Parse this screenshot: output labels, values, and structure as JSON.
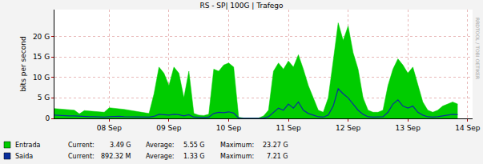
{
  "chart_data": {
    "type": "area",
    "title": "RS - SP| 100G | Trafego",
    "y_label": "bits per second",
    "watermark": "RRDTOOL / TOBI OETIKER",
    "categories": [
      null,
      null,
      null,
      null,
      null,
      null,
      null,
      null,
      null,
      null,
      null,
      "08 Sep",
      null,
      null,
      null,
      null,
      null,
      null,
      null,
      null,
      null,
      null,
      null,
      "09 Sep",
      null,
      null,
      null,
      null,
      null,
      null,
      null,
      null,
      null,
      null,
      null,
      "10 Sep",
      null,
      null,
      null,
      null,
      null,
      null,
      null,
      null,
      null,
      null,
      null,
      "11 Sep",
      null,
      null,
      null,
      null,
      null,
      null,
      null,
      null,
      null,
      null,
      null,
      "12 Sep",
      null,
      null,
      null,
      null,
      null,
      null,
      null,
      null,
      null,
      null,
      null,
      "13 Sep",
      null,
      null,
      null,
      null,
      null,
      null,
      null,
      null,
      null,
      null,
      null,
      "14 Sep",
      null
    ],
    "series": [
      {
        "name": "Entrada",
        "color": "#00cc00",
        "type": "area",
        "values": [
          2400000000.0,
          2300000000.0,
          2200000000.0,
          2100000000.0,
          2000000000.0,
          1100000000.0,
          1900000000.0,
          1800000000.0,
          1700000000.0,
          1600000000.0,
          1500000000.0,
          2600000000.0,
          2500000000.0,
          2300000000.0,
          2200000000.0,
          2000000000.0,
          1800000000.0,
          1600000000.0,
          1400000000.0,
          1200000000.0,
          6000000000.0,
          12500000000.0,
          11000000000.0,
          8000000000.0,
          12500000000.0,
          11000000000.0,
          5000000000.0,
          11500000000.0,
          1200000000.0,
          800000000.0,
          700000000.0,
          1000000000.0,
          12000000000.0,
          11500000000.0,
          13000000000.0,
          13500000000.0,
          12500000000.0,
          300000000.0,
          100000000.0,
          100000000.0,
          100000000.0,
          100000000.0,
          600000000.0,
          2000000000.0,
          11500000000.0,
          13500000000.0,
          12000000000.0,
          14000000000.0,
          12500000000.0,
          15500000000.0,
          12000000000.0,
          8000000000.0,
          5000000000.0,
          2000000000.0,
          1500000000.0,
          5000000000.0,
          14000000000.0,
          23270000000.0,
          19000000000.0,
          22500000000.0,
          16000000000.0,
          12000000000.0,
          5000000000.0,
          2000000000.0,
          1500000000.0,
          1500000000.0,
          2000000000.0,
          8000000000.0,
          12000000000.0,
          14500000000.0,
          13000000000.0,
          11000000000.0,
          12500000000.0,
          8000000000.0,
          4000000000.0,
          2000000000.0,
          1500000000.0,
          2000000000.0,
          3000000000.0,
          3500000000.0,
          4000000000.0,
          3490000000.0,
          null,
          null,
          null
        ],
        "stats": [
          {
            "name": "Current:",
            "value": 3490000000.0,
            "label": "3.49 G"
          },
          {
            "name": "Average:",
            "value": 5550000000.0,
            "label": "5.55 G"
          },
          {
            "name": "Maximum:",
            "value": 23270000000.0,
            "label": "23.27 G"
          }
        ]
      },
      {
        "name": "Saida",
        "color": "#0a2f9c",
        "type": "line",
        "values": [
          800000000.0,
          700000000.0,
          700000000.0,
          600000000.0,
          600000000.0,
          500000000.0,
          500000000.0,
          400000000.0,
          400000000.0,
          300000000.0,
          300000000.0,
          400000000.0,
          500000000.0,
          500000000.0,
          400000000.0,
          400000000.0,
          300000000.0,
          300000000.0,
          300000000.0,
          300000000.0,
          500000000.0,
          1000000000.0,
          900000000.0,
          800000000.0,
          1000000000.0,
          900000000.0,
          600000000.0,
          900000000.0,
          300000000.0,
          200000000.0,
          200000000.0,
          300000000.0,
          1200000000.0,
          1500000000.0,
          1400000000.0,
          1600000000.0,
          1300000000.0,
          100000000.0,
          50000000.0,
          50000000.0,
          50000000.0,
          50000000.0,
          100000000.0,
          400000000.0,
          1500000000.0,
          2500000000.0,
          2000000000.0,
          3500000000.0,
          2500000000.0,
          4000000000.0,
          2000000000.0,
          1200000000.0,
          800000000.0,
          400000000.0,
          300000000.0,
          800000000.0,
          3000000000.0,
          7210000000.0,
          6000000000.0,
          5000000000.0,
          3500000000.0,
          2000000000.0,
          1000000000.0,
          400000000.0,
          300000000.0,
          300000000.0,
          400000000.0,
          1500000000.0,
          3500000000.0,
          4500000000.0,
          3000000000.0,
          2500000000.0,
          3000000000.0,
          1500000000.0,
          800000000.0,
          400000000.0,
          300000000.0,
          400000000.0,
          600000000.0,
          800000000.0,
          1000000000.0,
          892320000.0,
          null,
          null,
          null
        ],
        "stats": [
          {
            "name": "Current:",
            "value": 892320000.0,
            "label": "892.32 M"
          },
          {
            "name": "Average:",
            "value": 1330000000.0,
            "label": "1.33 G"
          },
          {
            "name": "Maximum:",
            "value": 7210000000.0,
            "label": "7.21 G"
          }
        ]
      }
    ],
    "ylim": [
      0,
      26500000000.0
    ],
    "yticks": [
      0,
      {
        "value": 5000000000.0,
        "label": "5 G"
      },
      {
        "value": 10000000000.0,
        "label": "10 G"
      },
      {
        "value": 15000000000.0,
        "label": "15 G"
      },
      {
        "value": 20000000000.0,
        "label": "20 G"
      }
    ],
    "grid": true,
    "legend": "bottom"
  }
}
